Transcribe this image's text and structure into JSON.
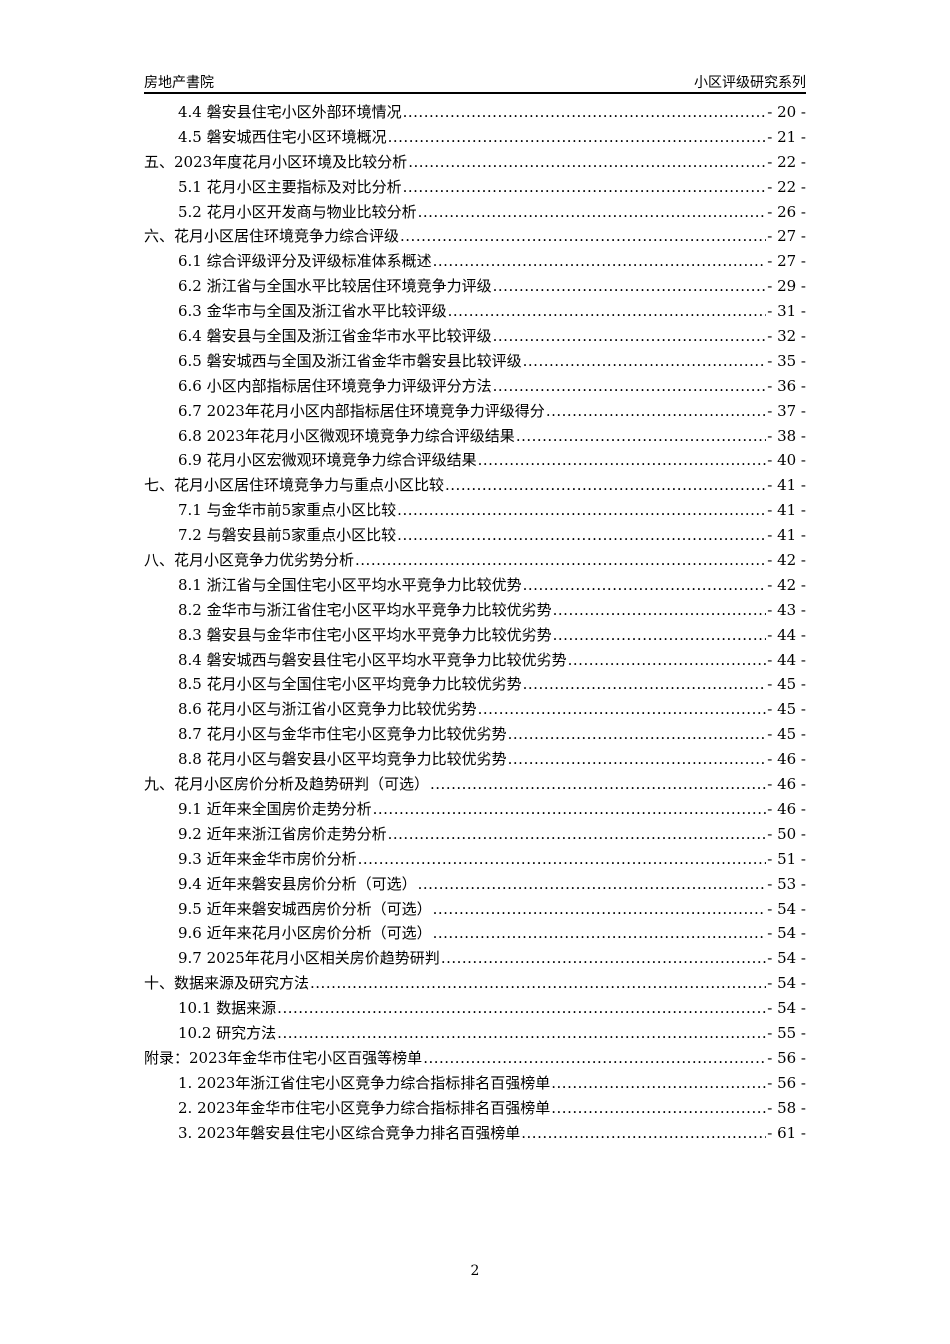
{
  "header": {
    "left": "房地产書院",
    "right": "小区评级研究系列"
  },
  "toc": [
    {
      "level": 2,
      "label": "4.4 磐安县住宅小区外部环境情况",
      "page": "- 20 -"
    },
    {
      "level": 2,
      "label": "4.5 磐安城西住宅小区环境概况",
      "page": "- 21 -"
    },
    {
      "level": 1,
      "label": "五、2023年度花月小区环境及比较分析",
      "page": "- 22 -"
    },
    {
      "level": 2,
      "label": "5.1 花月小区主要指标及对比分析",
      "page": "- 22 -"
    },
    {
      "level": 2,
      "label": "5.2 花月小区开发商与物业比较分析",
      "page": "- 26 -"
    },
    {
      "level": 1,
      "label": "六、花月小区居住环境竞争力综合评级",
      "page": "- 27 -"
    },
    {
      "level": 2,
      "label": "6.1 综合评级评分及评级标准体系概述",
      "page": "- 27 -"
    },
    {
      "level": 2,
      "label": "6.2 浙江省与全国水平比较居住环境竞争力评级",
      "page": "- 29 -"
    },
    {
      "level": 2,
      "label": "6.3 金华市与全国及浙江省水平比较评级",
      "page": "- 31 -"
    },
    {
      "level": 2,
      "label": "6.4 磐安县与全国及浙江省金华市水平比较评级",
      "page": "- 32 -"
    },
    {
      "level": 2,
      "label": "6.5 磐安城西与全国及浙江省金华市磐安县比较评级",
      "page": "- 35 -"
    },
    {
      "level": 2,
      "label": "6.6 小区内部指标居住环境竞争力评级评分方法",
      "page": "- 36 -"
    },
    {
      "level": 2,
      "label": "6.7 2023年花月小区内部指标居住环境竞争力评级得分",
      "page": "- 37 -"
    },
    {
      "level": 2,
      "label": "6.8 2023年花月小区微观环境竞争力综合评级结果",
      "page": "- 38 -"
    },
    {
      "level": 2,
      "label": "6.9 花月小区宏微观环境竞争力综合评级结果",
      "page": "- 40 -"
    },
    {
      "level": 1,
      "label": "七、花月小区居住环境竞争力与重点小区比较",
      "page": "- 41 -"
    },
    {
      "level": 2,
      "label": "7.1 与金华市前5家重点小区比较",
      "page": "- 41 -"
    },
    {
      "level": 2,
      "label": "7.2 与磐安县前5家重点小区比较",
      "page": "- 41 -"
    },
    {
      "level": 1,
      "label": "八、花月小区竞争力优劣势分析",
      "page": "- 42 -"
    },
    {
      "level": 2,
      "label": "8.1 浙江省与全国住宅小区平均水平竞争力比较优势",
      "page": "- 42 -"
    },
    {
      "level": 2,
      "label": "8.2 金华市与浙江省住宅小区平均水平竞争力比较优劣势",
      "page": "- 43 -"
    },
    {
      "level": 2,
      "label": "8.3 磐安县与金华市住宅小区平均水平竞争力比较优劣势",
      "page": "- 44 -"
    },
    {
      "level": 2,
      "label": "8.4 磐安城西与磐安县住宅小区平均水平竞争力比较优劣势",
      "page": "- 44 -"
    },
    {
      "level": 2,
      "label": "8.5 花月小区与全国住宅小区平均竞争力比较优劣势",
      "page": "- 45 -"
    },
    {
      "level": 2,
      "label": "8.6 花月小区与浙江省小区竞争力比较优劣势",
      "page": "- 45 -"
    },
    {
      "level": 2,
      "label": "8.7 花月小区与金华市住宅小区竞争力比较优劣势",
      "page": "- 45 -"
    },
    {
      "level": 2,
      "label": "8.8 花月小区与磐安县小区平均竞争力比较优劣势",
      "page": "- 46 -"
    },
    {
      "level": 1,
      "label": "九、花月小区房价分析及趋势研判（可选）",
      "page": "- 46 -"
    },
    {
      "level": 2,
      "label": "9.1 近年来全国房价走势分析",
      "page": "- 46 -"
    },
    {
      "level": 2,
      "label": "9.2 近年来浙江省房价走势分析",
      "page": "- 50 -"
    },
    {
      "level": 2,
      "label": "9.3 近年来金华市房价分析",
      "page": "- 51 -"
    },
    {
      "level": 2,
      "label": "9.4 近年来磐安县房价分析（可选）",
      "page": "- 53 -"
    },
    {
      "level": 2,
      "label": "9.5 近年来磐安城西房价分析（可选）",
      "page": "- 54 -"
    },
    {
      "level": 2,
      "label": "9.6 近年来花月小区房价分析（可选）",
      "page": "- 54 -"
    },
    {
      "level": 2,
      "label": "9.7 2025年花月小区相关房价趋势研判",
      "page": "- 54 -"
    },
    {
      "level": 1,
      "label": "十、数据来源及研究方法",
      "page": "- 54 -"
    },
    {
      "level": 2,
      "label": "10.1 数据来源",
      "page": "- 54 -"
    },
    {
      "level": 2,
      "label": "10.2 研究方法",
      "page": "- 55 -"
    },
    {
      "level": 1,
      "label": "附录：2023年金华市住宅小区百强等榜单",
      "page": "- 56 -"
    },
    {
      "level": 2,
      "label": "1. 2023年浙江省住宅小区竞争力综合指标排名百强榜单",
      "page": "- 56 -"
    },
    {
      "level": 2,
      "label": "2. 2023年金华市住宅小区竞争力综合指标排名百强榜单",
      "page": "- 58 -"
    },
    {
      "level": 2,
      "label": "3. 2023年磐安县住宅小区综合竞争力排名百强榜单",
      "page": "- 61 -"
    }
  ],
  "footer": {
    "page_number": "2"
  }
}
